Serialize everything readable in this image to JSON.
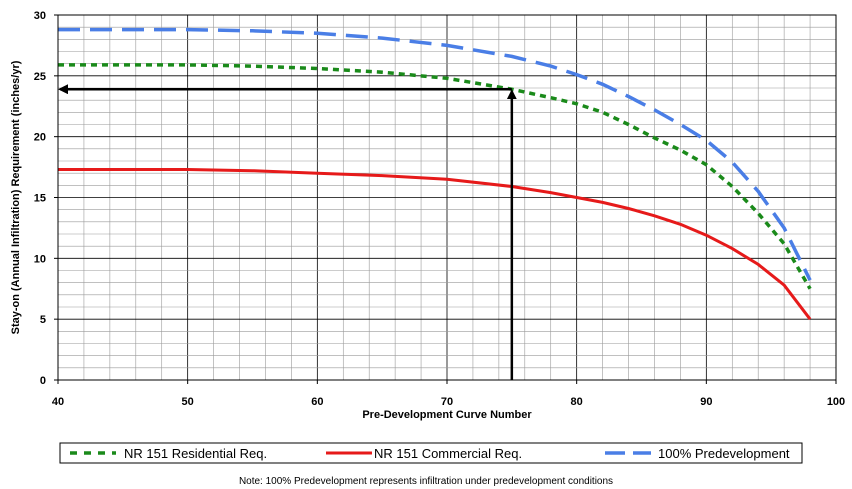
{
  "chart_data": {
    "type": "line",
    "xlabel": "Pre-Development Curve Number",
    "ylabel": "Stay-on (Annual Infiltration) Requirement (inches/yr)",
    "xlim": [
      40,
      100
    ],
    "ylim": [
      0,
      30
    ],
    "x_ticks": [
      "40",
      "50",
      "60",
      "70",
      "80",
      "90",
      "100"
    ],
    "y_ticks": [
      "0",
      "5",
      "10",
      "15",
      "20",
      "25",
      "30"
    ],
    "grid": true,
    "legend_position": "bottom",
    "note": "Note: 100% Predevelopment represents infiltration under predevelopment conditions",
    "series": [
      {
        "name": "NR 151 Residential Req.",
        "color": "#1a8a1a",
        "style": "dotted",
        "x": [
          40,
          45,
          50,
          55,
          60,
          65,
          70,
          75,
          78,
          80,
          82,
          84,
          86,
          88,
          90,
          92,
          94,
          96,
          98
        ],
        "y": [
          25.9,
          25.9,
          25.9,
          25.8,
          25.6,
          25.3,
          24.8,
          23.9,
          23.2,
          22.7,
          22.0,
          21.0,
          19.9,
          18.9,
          17.7,
          15.9,
          13.7,
          11.2,
          7.5
        ]
      },
      {
        "name": "NR 151 Commercial Req.",
        "color": "#e61a1a",
        "style": "solid",
        "x": [
          40,
          45,
          50,
          55,
          60,
          65,
          70,
          75,
          78,
          80,
          82,
          84,
          86,
          88,
          90,
          92,
          94,
          96,
          98
        ],
        "y": [
          17.3,
          17.3,
          17.3,
          17.2,
          17.0,
          16.8,
          16.5,
          15.9,
          15.4,
          15.0,
          14.6,
          14.1,
          13.5,
          12.8,
          11.9,
          10.8,
          9.5,
          7.8,
          5.0
        ]
      },
      {
        "name": "100% Predevelopment",
        "color": "#4a7ee6",
        "style": "dashed",
        "x": [
          40,
          45,
          50,
          55,
          60,
          65,
          70,
          75,
          78,
          80,
          82,
          84,
          86,
          88,
          90,
          92,
          94,
          96,
          98
        ],
        "y": [
          28.8,
          28.8,
          28.8,
          28.7,
          28.5,
          28.1,
          27.5,
          26.6,
          25.8,
          25.1,
          24.3,
          23.3,
          22.2,
          21.0,
          19.7,
          17.9,
          15.5,
          12.5,
          8.2
        ]
      }
    ],
    "annotations": [
      {
        "type": "arrow",
        "from": [
          75,
          0
        ],
        "to": [
          75,
          23.9
        ]
      },
      {
        "type": "arrow",
        "from": [
          75,
          23.9
        ],
        "to": [
          40,
          23.9
        ]
      }
    ]
  }
}
